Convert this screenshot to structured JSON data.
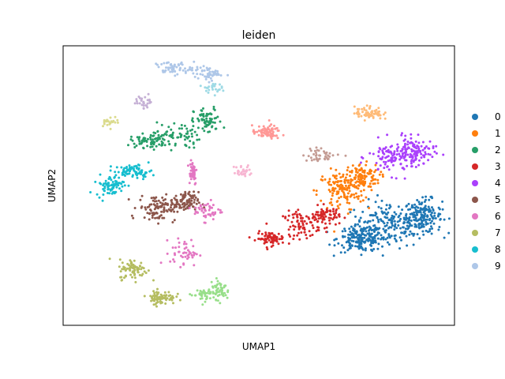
{
  "chart_data": {
    "type": "scatter",
    "title": "leiden",
    "xlabel": "UMAP1",
    "ylabel": "UMAP2",
    "xlim": [
      0,
      100
    ],
    "ylim": [
      0,
      100
    ],
    "grid": false,
    "legend_position": "right",
    "legend": [
      {
        "label": "0",
        "color": "#1f77b4"
      },
      {
        "label": "1",
        "color": "#ff7f0e"
      },
      {
        "label": "2",
        "color": "#279e68"
      },
      {
        "label": "3",
        "color": "#d62728"
      },
      {
        "label": "4",
        "color": "#aa40fc"
      },
      {
        "label": "5",
        "color": "#8c564b"
      },
      {
        "label": "6",
        "color": "#e377c2"
      },
      {
        "label": "7",
        "color": "#b5bd61"
      },
      {
        "label": "8",
        "color": "#17becf"
      },
      {
        "label": "9",
        "color": "#aec7e8"
      }
    ],
    "clusters": [
      {
        "id": "0",
        "color": "#1f77b4",
        "n": 520,
        "centers": [
          [
            83,
            36,
            7,
            7
          ],
          [
            92,
            39,
            4,
            5
          ],
          [
            76,
            31,
            5,
            4
          ]
        ]
      },
      {
        "id": "1",
        "color": "#ff7f0e",
        "n": 250,
        "centers": [
          [
            71,
            48,
            5,
            6
          ],
          [
            76,
            53,
            4,
            4
          ]
        ]
      },
      {
        "id": "2",
        "color": "#279e68",
        "n": 200,
        "centers": [
          [
            29,
            68,
            5,
            4
          ],
          [
            37,
            73,
            3,
            4
          ],
          [
            22,
            66,
            4,
            2
          ]
        ]
      },
      {
        "id": "3",
        "color": "#d62728",
        "n": 230,
        "centers": [
          [
            53,
            31,
            3,
            2
          ],
          [
            61,
            36,
            4,
            4
          ],
          [
            67,
            39,
            3,
            3
          ]
        ]
      },
      {
        "id": "4",
        "color": "#aa40fc",
        "n": 210,
        "centers": [
          [
            84,
            60,
            5,
            5
          ],
          [
            90,
            62,
            4,
            4
          ]
        ]
      },
      {
        "id": "5",
        "color": "#8c564b",
        "n": 190,
        "centers": [
          [
            24,
            42,
            4,
            4
          ],
          [
            31,
            44,
            3,
            3
          ]
        ]
      },
      {
        "id": "6",
        "color": "#e377c2",
        "n": 140,
        "centers": [
          [
            31,
            26,
            3,
            4
          ],
          [
            37,
            41,
            3,
            3
          ],
          [
            33,
            55,
            1,
            4
          ]
        ]
      },
      {
        "id": "7",
        "color": "#b5bd61",
        "n": 160,
        "centers": [
          [
            18,
            20,
            3,
            3
          ],
          [
            25,
            10,
            3,
            2
          ]
        ]
      },
      {
        "id": "8",
        "color": "#17becf",
        "n": 150,
        "centers": [
          [
            12,
            50,
            3,
            3
          ],
          [
            18,
            55,
            4,
            2
          ]
        ]
      },
      {
        "id": "9",
        "color": "#aec7e8",
        "n": 110,
        "centers": [
          [
            28,
            92,
            4,
            2
          ],
          [
            37,
            90,
            3,
            2
          ]
        ]
      },
      {
        "id": "10",
        "color": "#98df8a",
        "n": 90,
        "centers": [
          [
            36,
            11,
            3,
            2
          ],
          [
            40,
            13,
            2,
            3
          ]
        ]
      },
      {
        "id": "11",
        "color": "#ff9896",
        "n": 80,
        "centers": [
          [
            52,
            69,
            3,
            2
          ]
        ]
      },
      {
        "id": "12",
        "color": "#ffbb78",
        "n": 70,
        "centers": [
          [
            78,
            76,
            3,
            2
          ]
        ]
      },
      {
        "id": "13",
        "color": "#c5b0d5",
        "n": 30,
        "centers": [
          [
            21,
            80,
            2,
            2
          ]
        ]
      },
      {
        "id": "14",
        "color": "#dbdb8d",
        "n": 25,
        "centers": [
          [
            12,
            73,
            2,
            1.5
          ]
        ]
      },
      {
        "id": "15",
        "color": "#c49c94",
        "n": 40,
        "centers": [
          [
            66,
            61,
            4,
            2
          ]
        ]
      },
      {
        "id": "16",
        "color": "#f7b6d2",
        "n": 30,
        "centers": [
          [
            46,
            55,
            2,
            2
          ]
        ]
      },
      {
        "id": "17",
        "color": "#9edae5",
        "n": 25,
        "centers": [
          [
            38,
            85,
            2,
            1.5
          ]
        ]
      }
    ]
  }
}
